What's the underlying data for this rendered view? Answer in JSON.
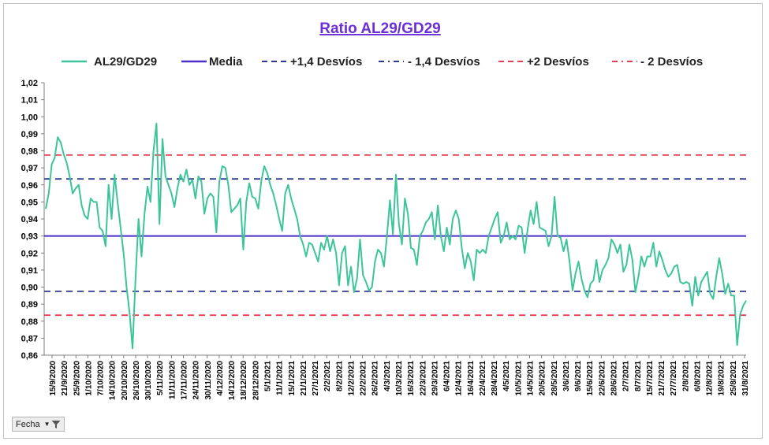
{
  "chart_data": {
    "type": "line",
    "title": "Ratio AL29/GD29",
    "xlabel": "",
    "ylabel": "",
    "ylim": [
      0.86,
      1.02
    ],
    "yticks": [
      "0,86",
      "0,87",
      "0,88",
      "0,89",
      "0,90",
      "0,91",
      "0,92",
      "0,93",
      "0,94",
      "0,95",
      "0,96",
      "0,97",
      "0,98",
      "0,99",
      "1,00",
      "1,01",
      "1,02"
    ],
    "grid": false,
    "legend_position": "top",
    "x_start": "15/9/2020",
    "x_end": "31/8/2021",
    "x_tick_labels": [
      "15/9/2020",
      "21/9/2020",
      "25/9/2020",
      "1/10/2020",
      "7/10/2020",
      "14/10/2020",
      "20/10/2020",
      "26/10/2020",
      "30/10/2020",
      "5/11/2020",
      "11/11/2020",
      "17/11/2020",
      "24/11/2020",
      "30/11/2020",
      "4/12/2020",
      "14/12/2020",
      "18/12/2020",
      "28/12/2020",
      "5/1/2021",
      "11/1/2021",
      "15/1/2021",
      "21/1/2021",
      "27/1/2021",
      "2/2/2021",
      "8/2/2021",
      "12/2/2021",
      "22/2/2021",
      "26/2/2021",
      "4/3/2021",
      "10/3/2021",
      "16/3/2021",
      "22/3/2021",
      "29/3/2021",
      "6/4/2021",
      "12/4/2021",
      "16/4/2021",
      "22/4/2021",
      "28/4/2021",
      "4/5/2021",
      "10/5/2021",
      "14/5/2021",
      "20/5/2021",
      "28/5/2021",
      "3/6/2021",
      "9/6/2021",
      "15/6/2021",
      "22/6/2021",
      "28/6/2021",
      "2/7/2021",
      "8/7/2021",
      "15/7/2021",
      "21/7/2021",
      "27/7/2021",
      "2/8/2021",
      "6/8/2021",
      "12/8/2021",
      "19/8/2021",
      "25/8/2021",
      "31/8/2021"
    ],
    "series": [
      {
        "name": "AL29/GD29",
        "color": "#3cc49a",
        "style": "solid",
        "values": [
          0.946,
          0.955,
          0.972,
          0.976,
          0.988,
          0.985,
          0.978,
          0.973,
          0.965,
          0.955,
          0.958,
          0.96,
          0.948,
          0.942,
          0.94,
          0.952,
          0.95,
          0.95,
          0.935,
          0.933,
          0.924,
          0.96,
          0.94,
          0.966,
          0.95,
          0.935,
          0.92,
          0.9,
          0.885,
          0.864,
          0.905,
          0.94,
          0.918,
          0.943,
          0.959,
          0.95,
          0.98,
          0.996,
          0.937,
          0.987,
          0.965,
          0.96,
          0.955,
          0.947,
          0.958,
          0.966,
          0.962,
          0.969,
          0.96,
          0.963,
          0.952,
          0.965,
          0.962,
          0.943,
          0.952,
          0.955,
          0.953,
          0.932,
          0.962,
          0.971,
          0.97,
          0.96,
          0.944,
          0.946,
          0.948,
          0.952,
          0.922,
          0.95,
          0.961,
          0.953,
          0.952,
          0.946,
          0.962,
          0.971,
          0.967,
          0.96,
          0.955,
          0.948,
          0.94,
          0.933,
          0.955,
          0.96,
          0.952,
          0.946,
          0.94,
          0.93,
          0.925,
          0.918,
          0.926,
          0.925,
          0.92,
          0.915,
          0.926,
          0.922,
          0.93,
          0.921,
          0.928,
          0.92,
          0.901,
          0.92,
          0.924,
          0.901,
          0.912,
          0.897,
          0.905,
          0.928,
          0.907,
          0.903,
          0.898,
          0.9,
          0.915,
          0.922,
          0.92,
          0.912,
          0.93,
          0.951,
          0.931,
          0.966,
          0.937,
          0.925,
          0.952,
          0.943,
          0.923,
          0.922,
          0.913,
          0.93,
          0.933,
          0.938,
          0.94,
          0.944,
          0.928,
          0.948,
          0.93,
          0.921,
          0.935,
          0.925,
          0.94,
          0.945,
          0.94,
          0.923,
          0.911,
          0.92,
          0.915,
          0.904,
          0.922,
          0.92,
          0.922,
          0.92,
          0.93,
          0.935,
          0.94,
          0.944,
          0.926,
          0.93,
          0.938,
          0.928,
          0.93,
          0.928,
          0.936,
          0.935,
          0.92,
          0.934,
          0.945,
          0.937,
          0.95,
          0.935,
          0.934,
          0.933,
          0.924,
          0.93,
          0.953,
          0.93,
          0.929,
          0.921,
          0.928,
          0.915,
          0.898,
          0.908,
          0.915,
          0.905,
          0.898,
          0.894,
          0.902,
          0.904,
          0.916,
          0.903,
          0.91,
          0.913,
          0.917,
          0.928,
          0.925,
          0.92,
          0.925,
          0.909,
          0.913,
          0.925,
          0.916,
          0.897,
          0.906,
          0.918,
          0.912,
          0.918,
          0.918,
          0.926,
          0.912,
          0.921,
          0.916,
          0.91,
          0.906,
          0.908,
          0.912,
          0.913,
          0.903,
          0.902,
          0.903,
          0.902,
          0.889,
          0.906,
          0.895,
          0.903,
          0.906,
          0.909,
          0.896,
          0.893,
          0.906,
          0.917,
          0.908,
          0.896,
          0.902,
          0.895,
          0.895,
          0.866,
          0.884,
          0.889,
          0.892
        ]
      },
      {
        "name": "Media",
        "color": "#4b2fc9",
        "style": "solid",
        "value": 0.93
      },
      {
        "name": "+1,4 Desvíos",
        "color": "#2e3a8c",
        "style": "dashed",
        "value": 0.9635
      },
      {
        "name": "- 1,4 Desvíos",
        "color": "#2e3a8c",
        "style": "dash-dot",
        "value": 0.8975
      },
      {
        "name": "+2 Desvíos",
        "color": "#e0404f",
        "style": "dashed",
        "value": 0.9775
      },
      {
        "name": "- 2 Desvíos",
        "color": "#e0404f",
        "style": "dash-dot",
        "value": 0.8835
      }
    ]
  },
  "controls": {
    "fecha_button": "Fecha",
    "fecha_icons": [
      "dropdown-arrow-icon",
      "filter-funnel-icon"
    ]
  },
  "colors": {
    "title": "#6a2fd6",
    "axis_text": "#000000"
  }
}
